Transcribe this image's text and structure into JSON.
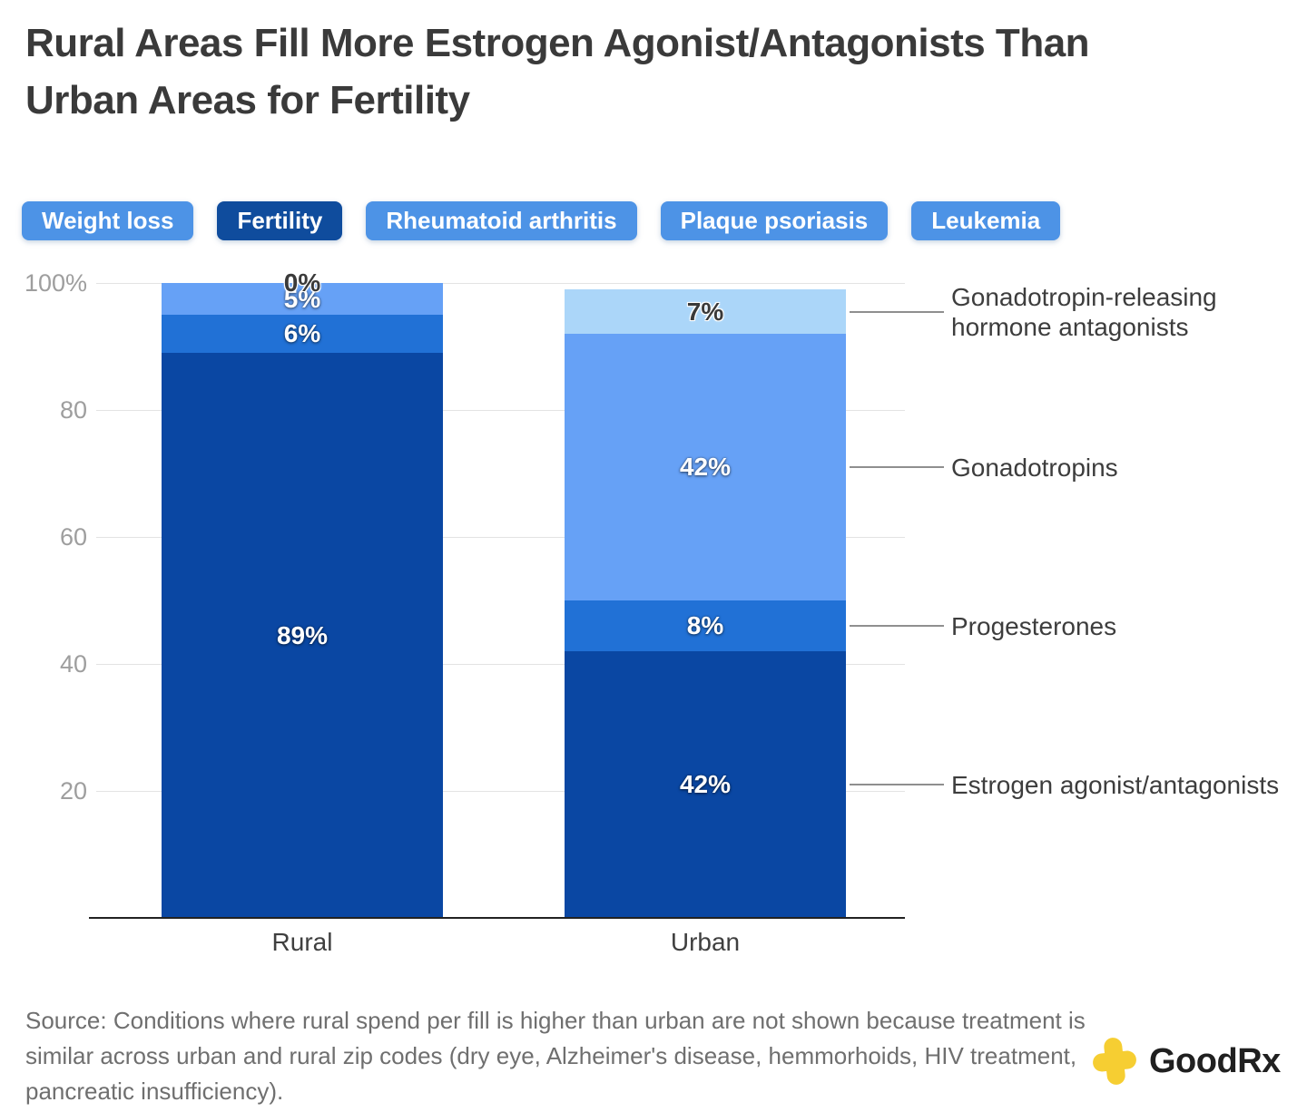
{
  "header": {
    "title": "Rural Areas Fill More Estrogen Agonist/Antagonists Than\nUrban Areas for Fertility"
  },
  "tabs": [
    {
      "label": "Weight loss",
      "selected": false
    },
    {
      "label": "Fertility",
      "selected": true
    },
    {
      "label": "Rheumatoid arthritis",
      "selected": false
    },
    {
      "label": "Plaque psoriasis",
      "selected": false
    },
    {
      "label": "Leukemia",
      "selected": false
    }
  ],
  "colors": {
    "tab_unselected": "#4d93e6",
    "tab_selected": "#0f4c9d",
    "dark_blue": "#0a47a3",
    "medium_blue": "#2171d6",
    "light_blue": "#66a1f6",
    "pale_blue": "#abd6f9",
    "logo_yellow": "#f6ce32"
  },
  "chart_data": {
    "type": "bar",
    "subtype": "stacked-percent-column",
    "categories": [
      "Rural",
      "Urban"
    ],
    "series": [
      {
        "name": "Estrogen agonist/antagonists",
        "values": [
          89,
          42
        ],
        "labels": [
          "89%",
          "42%"
        ],
        "color": "#0a47a3",
        "label_style": "light"
      },
      {
        "name": "Progesterones",
        "values": [
          6,
          8
        ],
        "labels": [
          "6%",
          "8%"
        ],
        "color": "#2171d6",
        "label_style": "light"
      },
      {
        "name": "Gonadotropins",
        "values": [
          5,
          42
        ],
        "labels": [
          "5%",
          "42%"
        ],
        "color": "#66a1f6",
        "label_style": "light"
      },
      {
        "name": "Gonadotropin-releasing hormone antagonists",
        "values": [
          0,
          7
        ],
        "labels": [
          "0%",
          "7%"
        ],
        "color": "#abd6f9",
        "label_style": "dark"
      }
    ],
    "yticks": [
      {
        "value": 100,
        "label": "100%"
      },
      {
        "value": 80,
        "label": "80"
      },
      {
        "value": 60,
        "label": "60"
      },
      {
        "value": 40,
        "label": "40"
      },
      {
        "value": 20,
        "label": "20"
      }
    ],
    "ylim": [
      0,
      100
    ],
    "grid": true,
    "legend_position": "right-annotations",
    "title": "",
    "xlabel": "",
    "ylabel": ""
  },
  "footer": {
    "source": "Source: Conditions where rural spend per fill is higher than urban are not shown because treatment is similar across urban and rural zip codes (dry eye, Alzheimer's disease, hemmorhoids, HIV treatment, pancreatic insufficiency).",
    "logo_text": "GoodRx"
  }
}
